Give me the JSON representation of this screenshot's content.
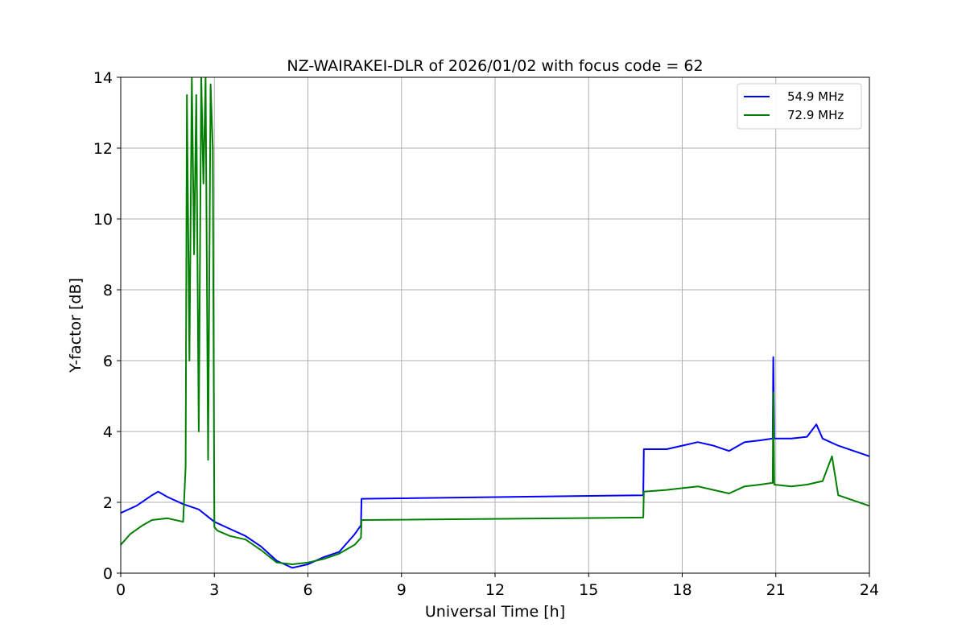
{
  "chart_data": {
    "type": "line",
    "title": "NZ-WAIRAKEI-DLR of 2026/01/02 with focus code = 62",
    "xlabel": "Universal Time [h]",
    "ylabel": "Y-factor [dB]",
    "xlim": [
      0,
      24
    ],
    "ylim": [
      0,
      14
    ],
    "xticks": [
      "0",
      "3",
      "6",
      "9",
      "12",
      "15",
      "18",
      "21",
      "24"
    ],
    "yticks": [
      "0",
      "2",
      "4",
      "6",
      "8",
      "10",
      "12",
      "14"
    ],
    "grid": true,
    "legend_position": "top-right",
    "series": [
      {
        "name": "54.9 MHz",
        "color": "#0000ff",
        "x": [
          0,
          0.5,
          1.0,
          1.2,
          1.5,
          2.0,
          2.5,
          3.0,
          3.5,
          4.0,
          4.5,
          5.0,
          5.5,
          6.0,
          6.5,
          7.0,
          7.5,
          7.7,
          7.72,
          16.75,
          16.77,
          17.5,
          18.0,
          18.5,
          19.0,
          19.5,
          20.0,
          20.5,
          20.9,
          20.92,
          20.95,
          21.5,
          22.0,
          22.3,
          22.5,
          23.0,
          23.5,
          24.0
        ],
        "y": [
          1.7,
          1.9,
          2.2,
          2.3,
          2.15,
          1.95,
          1.8,
          1.45,
          1.25,
          1.05,
          0.75,
          0.35,
          0.15,
          0.25,
          0.45,
          0.6,
          1.1,
          1.35,
          2.1,
          2.2,
          3.5,
          3.5,
          3.6,
          3.7,
          3.6,
          3.45,
          3.7,
          3.75,
          3.8,
          6.1,
          3.8,
          3.8,
          3.85,
          4.2,
          3.8,
          3.6,
          3.45,
          3.3
        ]
      },
      {
        "name": "72.9 MHz",
        "color": "#008000",
        "x": [
          0,
          0.3,
          0.7,
          1.0,
          1.5,
          2.0,
          2.08,
          2.12,
          2.2,
          2.28,
          2.35,
          2.42,
          2.5,
          2.58,
          2.65,
          2.72,
          2.8,
          2.88,
          2.95,
          3.0,
          3.1,
          3.5,
          4.0,
          4.5,
          5.0,
          5.5,
          6.0,
          6.5,
          7.0,
          7.5,
          7.7,
          7.72,
          16.75,
          16.77,
          17.5,
          18.0,
          18.5,
          19.0,
          19.5,
          20.0,
          20.5,
          20.9,
          20.92,
          20.95,
          21.5,
          22.0,
          22.5,
          22.8,
          23.0,
          23.5,
          24.0
        ],
        "y": [
          0.8,
          1.1,
          1.35,
          1.5,
          1.55,
          1.45,
          3.0,
          13.5,
          6.0,
          14.0,
          9.0,
          13.5,
          4.0,
          14.0,
          11.0,
          14.0,
          3.2,
          13.8,
          12.0,
          1.3,
          1.2,
          1.05,
          0.95,
          0.65,
          0.3,
          0.25,
          0.3,
          0.4,
          0.55,
          0.8,
          1.0,
          1.5,
          1.57,
          2.3,
          2.35,
          2.4,
          2.45,
          2.35,
          2.25,
          2.45,
          2.5,
          2.55,
          5.1,
          2.5,
          2.45,
          2.5,
          2.6,
          3.3,
          2.2,
          2.05,
          1.9
        ]
      }
    ]
  }
}
